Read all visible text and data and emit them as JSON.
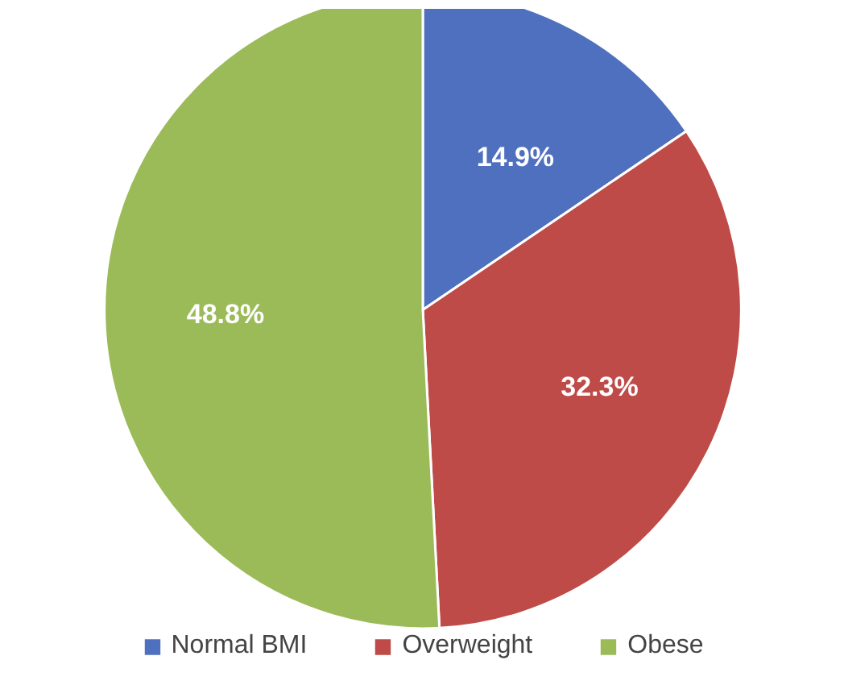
{
  "chart_data": {
    "type": "pie",
    "categories": [
      "Normal BMI",
      "Overweight",
      "Obese"
    ],
    "values": [
      14.9,
      32.3,
      48.8
    ],
    "value_labels": [
      "14.9%",
      "32.3%",
      "48.8%"
    ],
    "colors": [
      "#4f70be",
      "#be4b48",
      "#9bbb59"
    ],
    "legend": "bottom"
  }
}
